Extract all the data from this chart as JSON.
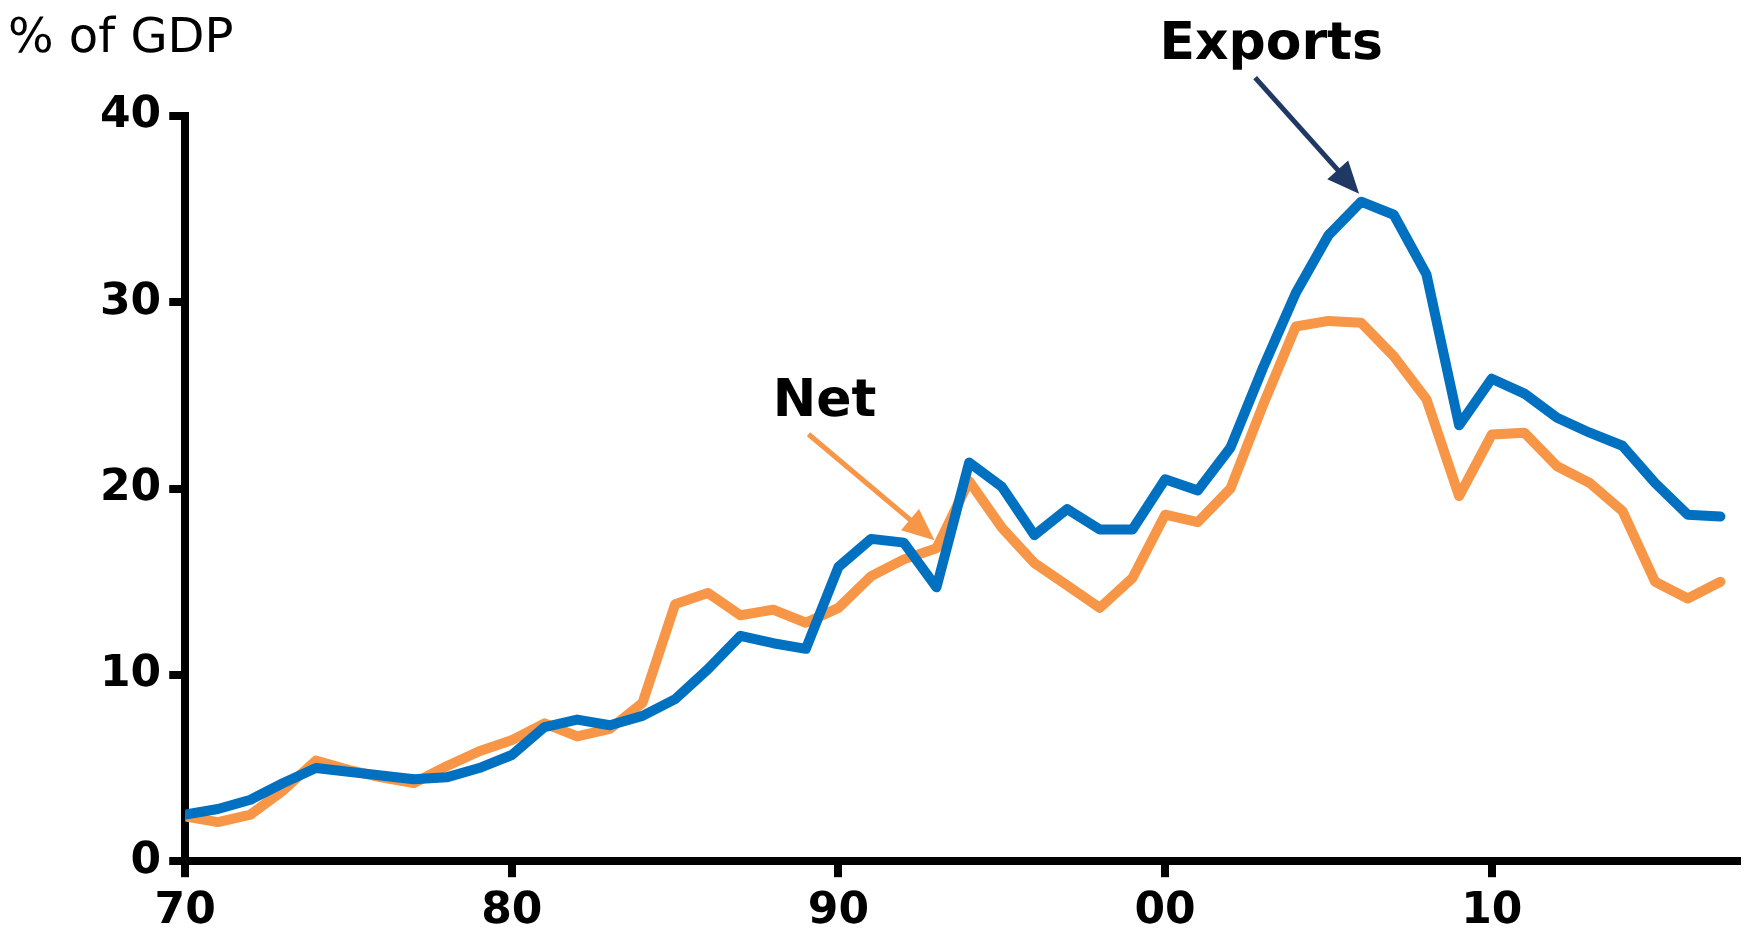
{
  "chart_data": {
    "type": "line",
    "ylabel": "% of GDP",
    "x": [
      1970,
      1971,
      1972,
      1973,
      1974,
      1975,
      1976,
      1977,
      1978,
      1979,
      1980,
      1981,
      1982,
      1983,
      1984,
      1985,
      1986,
      1987,
      1988,
      1989,
      1990,
      1991,
      1992,
      1993,
      1994,
      1995,
      1996,
      1997,
      1998,
      1999,
      2000,
      2001,
      2002,
      2003,
      2004,
      2005,
      2006,
      2007,
      2008,
      2009,
      2010,
      2011,
      2012,
      2013,
      2014,
      2015,
      2016,
      2017
    ],
    "series": [
      {
        "color": "#0070c0",
        "values": [
          2.5,
          2.8,
          3.3,
          4.2,
          5.0,
          4.8,
          4.6,
          4.4,
          4.5,
          5.0,
          5.7,
          7.2,
          7.6,
          7.3,
          7.8,
          8.7,
          10.3,
          12.1,
          11.7,
          11.4,
          15.8,
          17.3,
          17.1,
          14.7,
          21.4,
          20.1,
          17.5,
          18.9,
          17.8,
          17.8,
          20.5,
          19.9,
          22.2,
          26.5,
          30.5,
          33.6,
          35.4,
          34.7,
          31.5,
          23.4,
          25.9,
          25.1,
          23.8,
          23.0,
          22.3,
          20.3,
          18.6,
          18.5
        ]
      },
      {
        "color": "#f79646",
        "values": [
          2.4,
          2.1,
          2.5,
          3.8,
          5.4,
          4.9,
          4.5,
          4.2,
          5.1,
          5.9,
          6.5,
          7.4,
          6.7,
          7.1,
          8.5,
          13.8,
          14.4,
          13.2,
          13.5,
          12.8,
          13.6,
          15.3,
          16.2,
          16.8,
          20.4,
          17.9,
          16.0,
          14.8,
          13.6,
          15.2,
          18.6,
          18.2,
          20.0,
          24.5,
          28.7,
          29.0,
          28.9,
          27.1,
          24.8,
          19.6,
          22.9,
          23.0,
          21.2,
          20.3,
          18.8,
          15.0,
          14.1,
          15.0
        ]
      }
    ],
    "annotations": [
      {
        "text": "Exports",
        "x": 2006,
        "y": 35.4
      },
      {
        "text": "Net",
        "x": 1993,
        "y": 16.8
      }
    ],
    "xlim": [
      1970,
      2017.6
    ],
    "xticks": [
      {
        "value": 1970,
        "label": "70"
      },
      {
        "value": 1980,
        "label": "80"
      },
      {
        "value": 1990,
        "label": "90"
      },
      {
        "value": 2000,
        "label": "00"
      },
      {
        "value": 2010,
        "label": "10"
      }
    ],
    "ylim": [
      0,
      40
    ],
    "yticks": [
      0,
      10,
      20,
      30,
      40
    ],
    "grid": false,
    "legend": false,
    "marker": "none",
    "line_style": "solid"
  }
}
